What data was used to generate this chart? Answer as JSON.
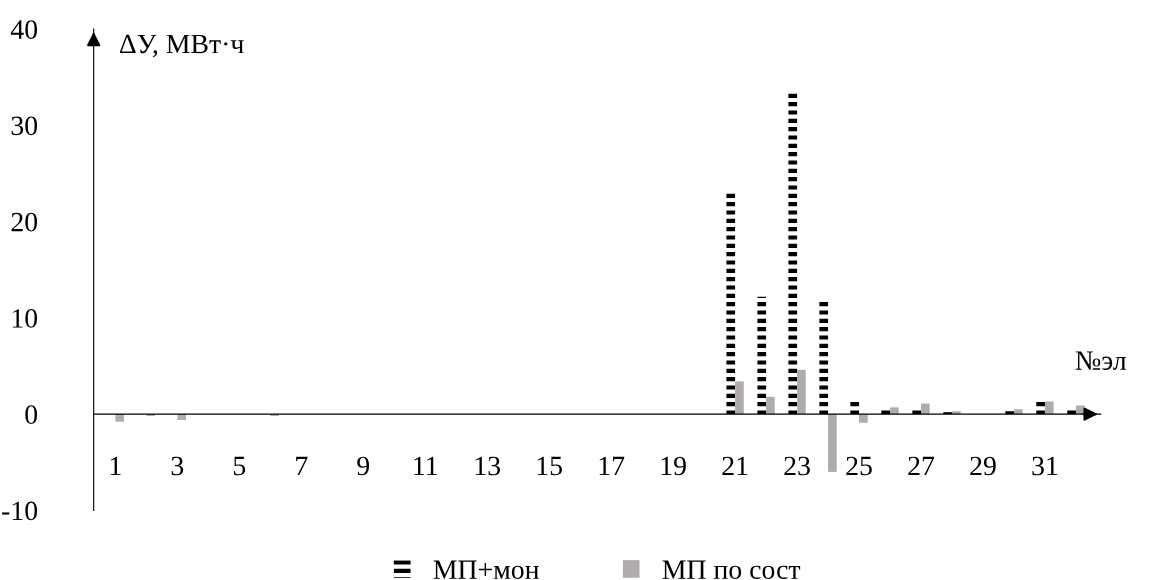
{
  "chart_data": {
    "type": "bar",
    "xlabel": "№эл",
    "ylabel": "ΔУ, МВт·ч",
    "categories": [
      "1",
      null,
      "3",
      null,
      "5",
      null,
      "7",
      null,
      "9",
      null,
      "11",
      null,
      "13",
      null,
      "15",
      null,
      "17",
      null,
      "19",
      null,
      "21",
      null,
      "23",
      null,
      "25",
      null,
      "27",
      null,
      "29",
      null,
      "31",
      null
    ],
    "series": [
      {
        "name": "МП+мон",
        "color": "#000000",
        "values": [
          0,
          0,
          0,
          0,
          0,
          0,
          0,
          0,
          0,
          0,
          0,
          0,
          0,
          0,
          0,
          0,
          0,
          0,
          0,
          0,
          23.0,
          12.2,
          33.5,
          11.9,
          1.6,
          0.7,
          0.7,
          0.2,
          0,
          0.3,
          1.3,
          0.7
        ]
      },
      {
        "name": "МП по сост",
        "color": "#b0acac",
        "values": [
          -0.8,
          -0.2,
          -0.6,
          0,
          0,
          -0.2,
          0,
          0,
          0,
          0,
          0,
          0,
          0,
          0,
          0,
          0,
          0,
          0,
          0,
          0,
          3.4,
          1.8,
          4.6,
          -6.0,
          -0.9,
          0.7,
          1.1,
          0.3,
          null,
          0.5,
          1.3,
          0.9
        ]
      }
    ],
    "ylim": [
      -10,
      40
    ],
    "yticks": [
      -10,
      0,
      10,
      20,
      30,
      40
    ],
    "grid": false,
    "legend": "bottom"
  }
}
